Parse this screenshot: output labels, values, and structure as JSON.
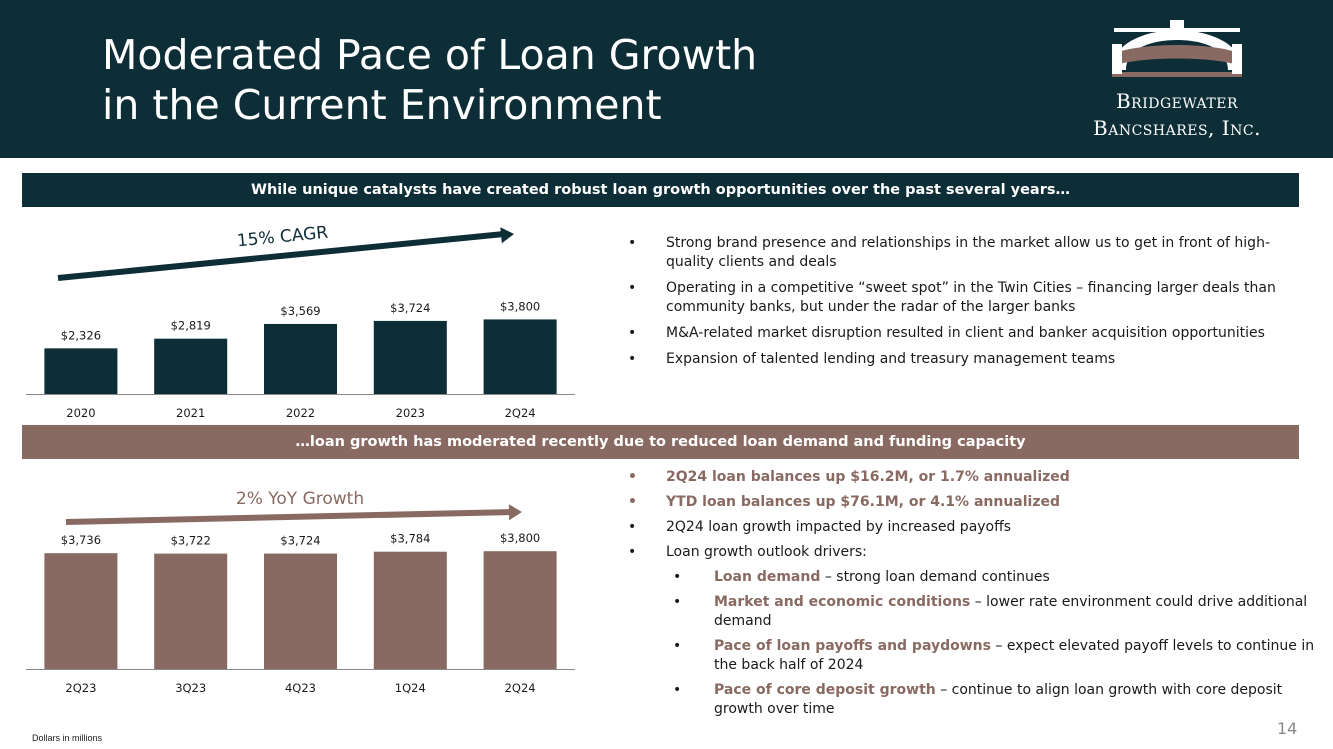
{
  "header": {
    "title_line1": "Moderated Pace of Loan Growth",
    "title_line2": "in the Current Environment",
    "logo_line1": "Bridgewater",
    "logo_line2": "Bancshares, Inc."
  },
  "colors": {
    "navy": "#0d2e36",
    "mauve": "#896a62",
    "axis": "#888888"
  },
  "top_banner": "While unique catalysts have created robust loan growth opportunities over the past several years…",
  "bottom_banner": "…loan growth has moderated recently due to reduced loan demand and funding capacity",
  "chart_data": [
    {
      "type": "bar",
      "title": "",
      "annotation": "15% CAGR",
      "categories": [
        "2020",
        "2021",
        "2022",
        "2023",
        "2Q24"
      ],
      "values": [
        2326,
        2819,
        3569,
        3724,
        3800
      ],
      "labels": [
        "$2,326",
        "$2,819",
        "$3,569",
        "$3,724",
        "$3,800"
      ],
      "units": "Dollars in millions",
      "ylim": [
        0,
        4000
      ],
      "color": "#0d2e36"
    },
    {
      "type": "bar",
      "title": "",
      "annotation": "2% YoY Growth",
      "categories": [
        "2Q23",
        "3Q23",
        "4Q23",
        "1Q24",
        "2Q24"
      ],
      "values": [
        3736,
        3722,
        3724,
        3784,
        3800
      ],
      "labels": [
        "$3,736",
        "$3,722",
        "$3,724",
        "$3,784",
        "$3,800"
      ],
      "units": "Dollars in millions",
      "ylim": [
        0,
        4000
      ],
      "color": "#896a62"
    }
  ],
  "top_bullets": [
    "Strong brand presence and relationships in the market allow us to get in front of high-quality clients and deals",
    "Operating in a competitive “sweet spot” in the Twin Cities – financing larger deals than community banks, but under the radar of the larger banks",
    "M&A-related market disruption resulted in client and banker acquisition opportunities",
    "Expansion of talented lending and treasury management teams"
  ],
  "bottom_bullets": {
    "b1": "2Q24 loan balances up $16.2M, or 1.7% annualized",
    "b2": "YTD loan balances up $76.1M, or 4.1% annualized",
    "b3": "2Q24 loan growth impacted by increased payoffs",
    "b4": "Loan growth outlook drivers:",
    "drivers": [
      {
        "label": "Loan demand",
        "text": " – strong loan demand continues"
      },
      {
        "label": "Market and economic conditions",
        "text": " – lower rate environment could drive additional demand"
      },
      {
        "label": "Pace of loan payoffs and paydowns",
        "text": " – expect elevated payoff levels to continue in the back half of 2024"
      },
      {
        "label": "Pace of core deposit growth",
        "text": " – continue to align loan growth with core deposit growth over time"
      }
    ]
  },
  "footnote": "Dollars in millions",
  "page_number": "14"
}
